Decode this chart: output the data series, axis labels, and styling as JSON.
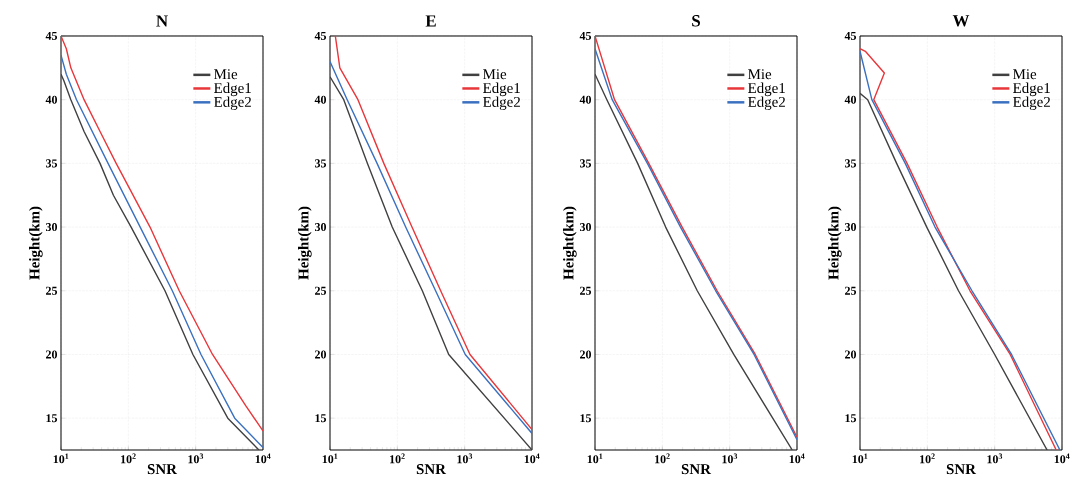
{
  "chart_data": [
    {
      "type": "line",
      "title": "N",
      "xlabel": "SNR",
      "ylabel": "Height(km)",
      "log": "x",
      "grid": true,
      "legend": "top right",
      "line_style": "solid",
      "xlim": [
        10,
        10000
      ],
      "ylim": [
        12.5,
        45
      ],
      "xticks": [
        {
          "value": 10,
          "label": "10$^{1}$"
        },
        {
          "value": 100,
          "label": "10$^{2}$"
        },
        {
          "value": 1000,
          "label": "10$^{3}$"
        },
        {
          "value": 10000,
          "label": "10$^{4}$"
        }
      ],
      "yticks": [
        15,
        20,
        25,
        30,
        35,
        40,
        45
      ],
      "series": [
        {
          "name": "Mie",
          "color": "#404040",
          "x": [
            8700,
            3000,
            910,
            350,
            110,
            60,
            38,
            22,
            14,
            11,
            10
          ],
          "values": [
            12.5,
            15,
            20,
            25,
            30,
            32.5,
            35,
            37.5,
            40,
            41.5,
            42
          ]
        },
        {
          "name": "Edge1",
          "color": "#e8363a",
          "x": [
            10000,
            5500,
            1780,
            570,
            210,
            66,
            38,
            22,
            14,
            12,
            10
          ],
          "values": [
            14,
            16,
            20,
            25,
            30,
            35,
            37.5,
            40,
            42.5,
            44,
            45
          ]
        },
        {
          "name": "Edge2",
          "color": "#3a70c0",
          "x": [
            10000,
            3800,
            1200,
            450,
            150,
            50,
            17,
            12,
            10
          ],
          "values": [
            12.7,
            15,
            20,
            25,
            30,
            35,
            40,
            42,
            43.5
          ]
        }
      ]
    },
    {
      "type": "line",
      "title": "E",
      "xlabel": "SNR",
      "ylabel": "Height(km)",
      "log": "x",
      "grid": true,
      "legend": "top right",
      "line_style": "solid",
      "xlim": [
        10,
        10000
      ],
      "ylim": [
        12.5,
        45
      ],
      "xticks": [
        {
          "value": 10,
          "label": "10$^{1}$"
        },
        {
          "value": 100,
          "label": "10$^{2}$"
        },
        {
          "value": 1000,
          "label": "10$^{3}$"
        },
        {
          "value": 10000,
          "label": "10$^{4}$"
        }
      ],
      "yticks": [
        15,
        20,
        25,
        30,
        35,
        40,
        45
      ],
      "series": [
        {
          "name": "Mie",
          "color": "#404040",
          "x": [
            10000,
            580,
            235,
            84,
            36,
            16,
            10
          ],
          "values": [
            12.5,
            20,
            25,
            30,
            35,
            40,
            41.8
          ]
        },
        {
          "name": "Edge1",
          "color": "#e8363a",
          "x": [
            10000,
            1200,
            440,
            165,
            63,
            26,
            14,
            12
          ],
          "values": [
            14.1,
            20,
            25,
            30,
            35,
            40,
            42.5,
            45
          ]
        },
        {
          "name": "Edge2",
          "color": "#3a70c0",
          "x": [
            10000,
            1020,
            370,
            133,
            50,
            18,
            10
          ],
          "values": [
            13.8,
            20,
            25,
            30,
            35,
            40,
            43
          ]
        }
      ]
    },
    {
      "type": "line",
      "title": "S",
      "xlabel": "SNR",
      "ylabel": "Height(km)",
      "log": "x",
      "grid": true,
      "legend": "top right",
      "line_style": "solid",
      "xlim": [
        10,
        10000
      ],
      "ylim": [
        12.5,
        45
      ],
      "xticks": [
        {
          "value": 10,
          "label": "10$^{1}$"
        },
        {
          "value": 100,
          "label": "10$^{2}$"
        },
        {
          "value": 1000,
          "label": "10$^{3}$"
        },
        {
          "value": 10000,
          "label": "10$^{4}$"
        }
      ],
      "yticks": [
        15,
        20,
        25,
        30,
        35,
        40,
        45
      ],
      "series": [
        {
          "name": "Mie",
          "color": "#404040",
          "x": [
            8500,
            1150,
            330,
            112,
            43,
            15,
            10
          ],
          "values": [
            12.5,
            20,
            25,
            30,
            35,
            40,
            42
          ]
        },
        {
          "name": "Edge1",
          "color": "#e8363a",
          "x": [
            10000,
            2400,
            650,
            197,
            63,
            19.5,
            10
          ],
          "values": [
            13.5,
            20,
            25,
            30,
            35,
            40,
            45
          ]
        },
        {
          "name": "Edge2",
          "color": "#3a70c0",
          "x": [
            10000,
            2300,
            620,
            186,
            60,
            18,
            10
          ],
          "values": [
            13.3,
            20,
            25,
            30,
            35,
            40,
            44
          ]
        }
      ]
    },
    {
      "type": "line",
      "title": "W",
      "xlabel": "SNR",
      "ylabel": "Height(km)",
      "log": "x",
      "grid": true,
      "legend": "top right",
      "line_style": "solid",
      "xlim": [
        10,
        10000
      ],
      "ylim": [
        12.5,
        45
      ],
      "xticks": [
        {
          "value": 10,
          "label": "10$^{1}$"
        },
        {
          "value": 100,
          "label": "10$^{2}$"
        },
        {
          "value": 1000,
          "label": "10$^{3}$"
        },
        {
          "value": 10000,
          "label": "10$^{4}$"
        }
      ],
      "yticks": [
        15,
        20,
        25,
        30,
        35,
        40,
        45
      ],
      "series": [
        {
          "name": "Mie",
          "color": "#404040",
          "x": [
            6000,
            1000,
            290,
            98,
            35,
            13,
            10
          ],
          "values": [
            12.5,
            20,
            25,
            30,
            35,
            40,
            40.5
          ]
        },
        {
          "name": "Edge1",
          "color": "#e8363a",
          "x": [
            8200,
            1700,
            430,
            140,
            50,
            16,
            23,
            12,
            10
          ],
          "values": [
            12.5,
            20,
            25,
            30,
            35,
            40,
            42.1,
            43.8,
            44
          ]
        },
        {
          "name": "Edge2",
          "color": "#3a70c0",
          "x": [
            9300,
            1780,
            460,
            130,
            47,
            15,
            10
          ],
          "values": [
            12.5,
            20,
            25,
            30,
            35,
            40,
            43.8
          ]
        }
      ]
    }
  ]
}
